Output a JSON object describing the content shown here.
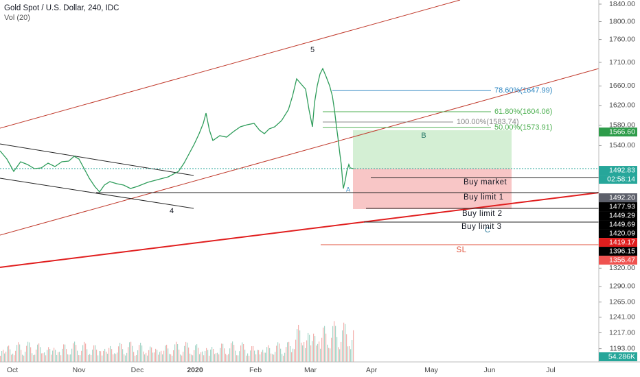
{
  "header": {
    "title": "Gold Spot / U.S. Dollar, 240, IDC",
    "indicator": "Vol (20)"
  },
  "price_axis": [
    {
      "value": 1840,
      "label": "1840.00"
    },
    {
      "value": 1800,
      "label": "1800.00"
    },
    {
      "value": 1760,
      "label": "1760.00"
    },
    {
      "value": 1710,
      "label": "1710.00"
    },
    {
      "value": 1660,
      "label": "1660.00"
    },
    {
      "value": 1620,
      "label": "1620.00"
    },
    {
      "value": 1580,
      "label": "1580.00"
    },
    {
      "value": 1540,
      "label": "1540.00"
    },
    {
      "value": 1320,
      "label": "1320.00"
    },
    {
      "value": 1290,
      "label": "1290.00"
    },
    {
      "value": 1265,
      "label": "1265.00"
    },
    {
      "value": 1241,
      "label": "1241.00"
    },
    {
      "value": 1217,
      "label": "1217.00"
    },
    {
      "value": 1193,
      "label": "1193.00"
    }
  ],
  "price_tags": [
    {
      "value": 1566.6,
      "label": "1566.60",
      "color": "#2e9c4a"
    },
    {
      "value": 1492.83,
      "label": "1492.83",
      "color": "#26a69a"
    },
    {
      "value": 1492.2,
      "label": "1492.20",
      "color": "#5d606b"
    },
    {
      "value": 1477.93,
      "label": "1477.93",
      "color": "#000000"
    },
    {
      "value": 1449.29,
      "label": "1449.29",
      "color": "#000000"
    },
    {
      "value": 1449.69,
      "label": "1449.69",
      "color": "#000000"
    },
    {
      "value": 1420.09,
      "label": "1420.09",
      "color": "#000000"
    },
    {
      "value": 1419.17,
      "label": "1419.17",
      "color": "#e01e1e"
    },
    {
      "value": 1396.15,
      "label": "1396.15",
      "color": "#000000"
    },
    {
      "value": 1356.47,
      "label": "1356.47",
      "color": "#ef5350"
    }
  ],
  "countdown": "02:58:14",
  "volume_tag": "54.286K",
  "time_axis": [
    "Oct",
    "Nov",
    "Dec",
    "2020",
    "Feb",
    "Mar",
    "Apr",
    "May",
    "Jun",
    "Jul"
  ],
  "annotations": {
    "wave_5": "5",
    "wave_4": "4",
    "wave_b": "B",
    "wave_a": "A",
    "wave_c": "C"
  },
  "fib_levels": [
    "78.60%(1647.99)",
    "61.80%(1604.06)",
    "100.00%(1583.74)",
    "50.00%(1573.91)"
  ],
  "orders": [
    "Buy market",
    "Buy limit 1",
    "Buy limit 2",
    "Buy limit 3",
    "SL"
  ]
}
